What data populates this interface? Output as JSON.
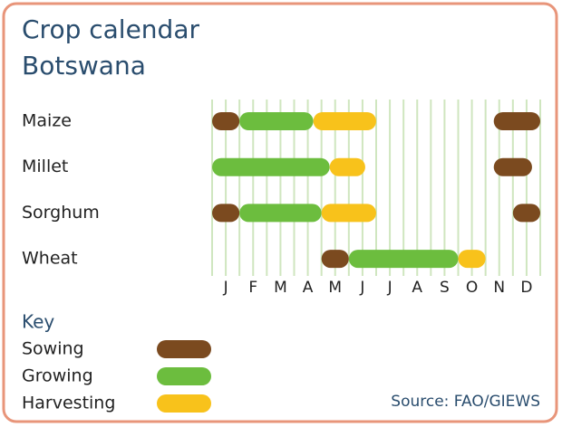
{
  "chart_data": {
    "type": "timeline",
    "title": "Crop calendar",
    "subtitle": "Botswana",
    "categories": [
      "J",
      "F",
      "M",
      "A",
      "M",
      "J",
      "J",
      "A",
      "S",
      "O",
      "N",
      "D"
    ],
    "xlim": [
      0,
      12
    ],
    "grid": true,
    "legend_title": "Key",
    "series": [
      {
        "name": "Sowing",
        "color": "#7b4a1f"
      },
      {
        "name": "Growing",
        "color": "#6cbd3e"
      },
      {
        "name": "Harvesting",
        "color": "#f8c21b"
      }
    ],
    "rows": [
      {
        "name": "Maize",
        "segments": [
          {
            "phase": "Sowing",
            "start": 0,
            "end": 1
          },
          {
            "phase": "Growing",
            "start": 1,
            "end": 3.7
          },
          {
            "phase": "Harvesting",
            "start": 3.7,
            "end": 6
          },
          {
            "phase": "Sowing",
            "start": 10.3,
            "end": 12
          }
        ]
      },
      {
        "name": "Millet",
        "segments": [
          {
            "phase": "Growing",
            "start": 0,
            "end": 4.3
          },
          {
            "phase": "Harvesting",
            "start": 4.3,
            "end": 5.6
          },
          {
            "phase": "Sowing",
            "start": 10.3,
            "end": 11.7
          }
        ]
      },
      {
        "name": "Sorghum",
        "segments": [
          {
            "phase": "Sowing",
            "start": 0,
            "end": 1
          },
          {
            "phase": "Growing",
            "start": 1,
            "end": 4
          },
          {
            "phase": "Harvesting",
            "start": 4,
            "end": 6
          },
          {
            "phase": "Sowing",
            "start": 11,
            "end": 12
          }
        ]
      },
      {
        "name": "Wheat",
        "segments": [
          {
            "phase": "Sowing",
            "start": 4,
            "end": 5
          },
          {
            "phase": "Growing",
            "start": 5,
            "end": 9
          },
          {
            "phase": "Harvesting",
            "start": 9,
            "end": 10
          }
        ]
      }
    ],
    "source": "Source: FAO/GIEWS"
  }
}
